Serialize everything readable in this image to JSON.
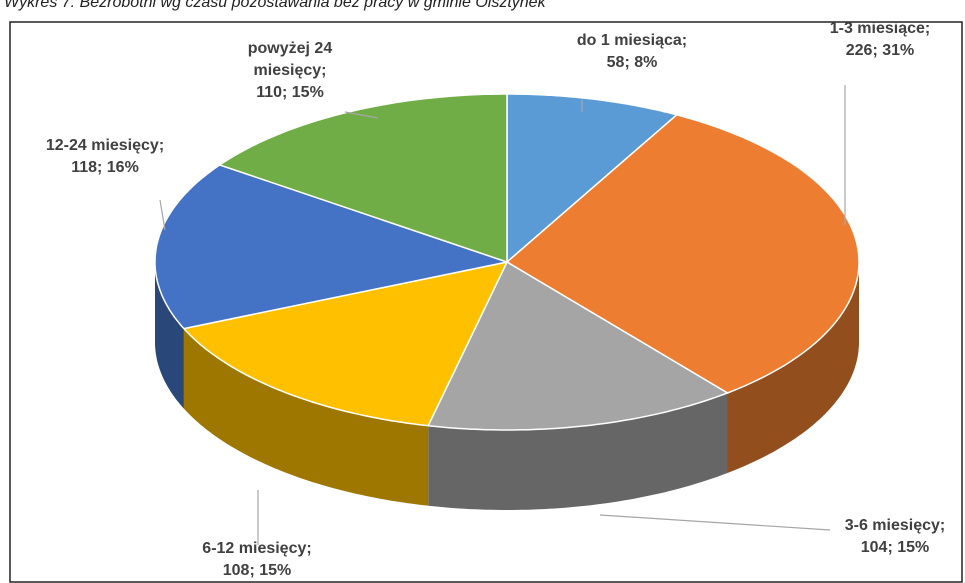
{
  "chart_data": {
    "type": "pie3d",
    "title": "Wykres 7. Bezrobotni wg czasu pozostawania bez pracy w gminie Olsztynek",
    "categories": [
      "do 1 miesiąca;",
      "1-3 miesiące;",
      "3-6 miesięcy;",
      "6-12 miesięcy;",
      "12-24 miesięcy;",
      "powyżej 24 miesięcy;"
    ],
    "values": [
      58,
      226,
      104,
      108,
      118,
      110
    ],
    "value_labels": [
      "58; 8%",
      "226; 31%",
      "104; 15%",
      "108; 15%",
      "118; 16%",
      "110; 15%"
    ],
    "colors": [
      "#5b9bd5",
      "#ed7d31",
      "#a5a5a5",
      "#ffc000",
      "#4472c4",
      "#70ad47"
    ]
  }
}
